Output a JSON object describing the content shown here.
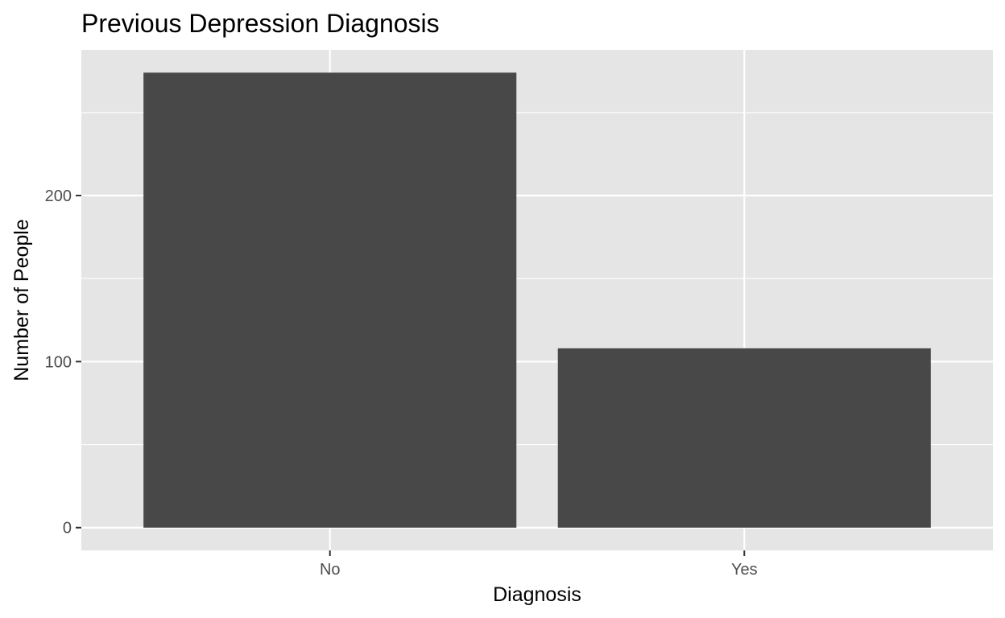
{
  "chart_data": {
    "type": "bar",
    "title": "Previous Depression Diagnosis",
    "xlabel": "Diagnosis",
    "ylabel": "Number of People",
    "categories": [
      "No",
      "Yes"
    ],
    "values": [
      274,
      108
    ],
    "ylim": [
      -13.7,
      287.7
    ],
    "yticks": [
      0,
      100,
      200
    ],
    "ytick_labels": [
      "0",
      "100",
      "200"
    ],
    "grid": true,
    "legend": "none",
    "colors": {
      "bar": "#484848",
      "panel": "#e5e5e5",
      "grid": "#ffffff",
      "tick_text": "#4d4d4d",
      "tick_mark": "#333333"
    }
  }
}
